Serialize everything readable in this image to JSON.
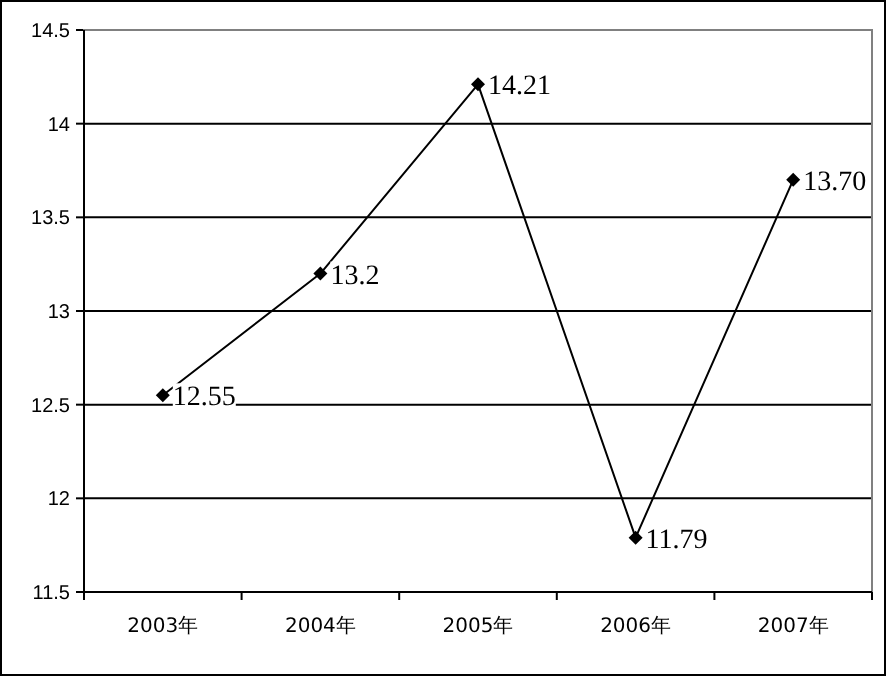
{
  "chart_data": {
    "type": "line",
    "categories": [
      "2003年",
      "2004年",
      "2005年",
      "2006年",
      "2007年"
    ],
    "values": [
      12.55,
      13.2,
      14.21,
      11.79,
      13.7
    ],
    "value_labels": [
      "12.55",
      "13.2",
      "14.21",
      "11.79",
      "13.70"
    ],
    "color": "#000000",
    "marker": "diamond",
    "ylim": [
      11.5,
      14.5
    ],
    "yticks": [
      11.5,
      12,
      12.5,
      13,
      13.5,
      14,
      14.5
    ],
    "grid": "y"
  }
}
